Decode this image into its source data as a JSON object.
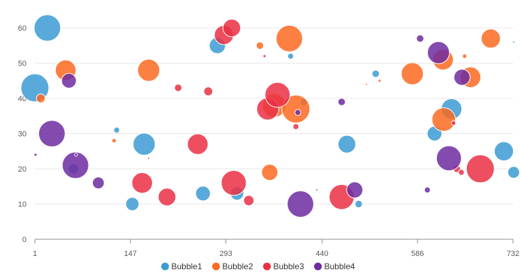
{
  "chart_data": {
    "type": "scatter",
    "subtype": "bubble",
    "title": "",
    "xlabel": "",
    "ylabel": "",
    "xlim": [
      1,
      732
    ],
    "ylim": [
      0,
      62
    ],
    "x_ticks": [
      1,
      147,
      293,
      440,
      586,
      732
    ],
    "y_ticks": [
      0,
      10,
      20,
      30,
      40,
      50,
      60
    ],
    "grid": true,
    "legend_position": "bottom",
    "max_bubble_radius": 20,
    "series": [
      {
        "name": "Bubble1",
        "color": "#3c9bd3",
        "points": [
          {
            "x": 1,
            "y": 43,
            "size": 19
          },
          {
            "x": 20,
            "y": 60,
            "size": 18
          },
          {
            "x": 60,
            "y": 20,
            "size": 7
          },
          {
            "x": 126,
            "y": 31,
            "size": 4
          },
          {
            "x": 150,
            "y": 10,
            "size": 9
          },
          {
            "x": 168,
            "y": 27,
            "size": 15
          },
          {
            "x": 258,
            "y": 13,
            "size": 10
          },
          {
            "x": 280,
            "y": 55,
            "size": 11
          },
          {
            "x": 310,
            "y": 13,
            "size": 9
          },
          {
            "x": 392,
            "y": 52,
            "size": 4
          },
          {
            "x": 412,
            "y": 39,
            "size": 5
          },
          {
            "x": 478,
            "y": 27,
            "size": 12
          },
          {
            "x": 496,
            "y": 10,
            "size": 5
          },
          {
            "x": 522,
            "y": 47,
            "size": 5
          },
          {
            "x": 612,
            "y": 30,
            "size": 10
          },
          {
            "x": 638,
            "y": 37,
            "size": 14
          },
          {
            "x": 718,
            "y": 25,
            "size": 13
          },
          {
            "x": 733,
            "y": 19,
            "size": 8
          },
          {
            "x": 733,
            "y": 56,
            "size": 1
          }
        ]
      },
      {
        "name": "Bubble2",
        "color": "#fb6a21",
        "points": [
          {
            "x": 10,
            "y": 40,
            "size": 6
          },
          {
            "x": 48,
            "y": 48,
            "size": 14
          },
          {
            "x": 122,
            "y": 28,
            "size": 3
          },
          {
            "x": 175,
            "y": 48,
            "size": 15
          },
          {
            "x": 345,
            "y": 55,
            "size": 5
          },
          {
            "x": 360,
            "y": 19,
            "size": 11
          },
          {
            "x": 367,
            "y": 38,
            "size": 16
          },
          {
            "x": 390,
            "y": 57,
            "size": 18
          },
          {
            "x": 400,
            "y": 37,
            "size": 19
          },
          {
            "x": 508,
            "y": 44,
            "size": 1
          },
          {
            "x": 528,
            "y": 45,
            "size": 2
          },
          {
            "x": 578,
            "y": 47,
            "size": 15
          },
          {
            "x": 626,
            "y": 34,
            "size": 16
          },
          {
            "x": 625,
            "y": 51,
            "size": 14
          },
          {
            "x": 658,
            "y": 52,
            "size": 3
          },
          {
            "x": 667,
            "y": 46,
            "size": 14
          },
          {
            "x": 698,
            "y": 57,
            "size": 13
          }
        ]
      },
      {
        "name": "Bubble3",
        "color": "#ea3044",
        "points": [
          {
            "x": 175,
            "y": 23,
            "size": 1
          },
          {
            "x": 165,
            "y": 16,
            "size": 14
          },
          {
            "x": 203,
            "y": 12,
            "size": 12
          },
          {
            "x": 220,
            "y": 43,
            "size": 5
          },
          {
            "x": 250,
            "y": 27,
            "size": 14
          },
          {
            "x": 266,
            "y": 42,
            "size": 6
          },
          {
            "x": 290,
            "y": 58,
            "size": 13
          },
          {
            "x": 302,
            "y": 60,
            "size": 12
          },
          {
            "x": 305,
            "y": 16,
            "size": 17
          },
          {
            "x": 328,
            "y": 11,
            "size": 7
          },
          {
            "x": 352,
            "y": 52,
            "size": 2
          },
          {
            "x": 357,
            "y": 37,
            "size": 15
          },
          {
            "x": 372,
            "y": 41,
            "size": 17
          },
          {
            "x": 400,
            "y": 32,
            "size": 4
          },
          {
            "x": 470,
            "y": 12,
            "size": 17
          },
          {
            "x": 641,
            "y": 33,
            "size": 3
          },
          {
            "x": 646,
            "y": 20,
            "size": 5
          },
          {
            "x": 653,
            "y": 19,
            "size": 4
          },
          {
            "x": 682,
            "y": 20,
            "size": 19
          }
        ]
      },
      {
        "name": "Bubble4",
        "color": "#6f2ba0",
        "points": [
          {
            "x": 2,
            "y": 24,
            "size": 2
          },
          {
            "x": 27,
            "y": 30,
            "size": 18
          },
          {
            "x": 53,
            "y": 45,
            "size": 10
          },
          {
            "x": 63,
            "y": 21,
            "size": 18
          },
          {
            "x": 64,
            "y": 24,
            "size": 2
          },
          {
            "x": 98,
            "y": 16,
            "size": 8
          },
          {
            "x": 403,
            "y": 36,
            "size": 4
          },
          {
            "x": 407,
            "y": 10,
            "size": 18
          },
          {
            "x": 432,
            "y": 14,
            "size": 1
          },
          {
            "x": 470,
            "y": 39,
            "size": 5
          },
          {
            "x": 490,
            "y": 14,
            "size": 11
          },
          {
            "x": 590,
            "y": 57,
            "size": 5
          },
          {
            "x": 601,
            "y": 14,
            "size": 4
          },
          {
            "x": 618,
            "y": 53,
            "size": 15
          },
          {
            "x": 634,
            "y": 23,
            "size": 17
          },
          {
            "x": 654,
            "y": 46,
            "size": 11
          }
        ]
      }
    ]
  }
}
